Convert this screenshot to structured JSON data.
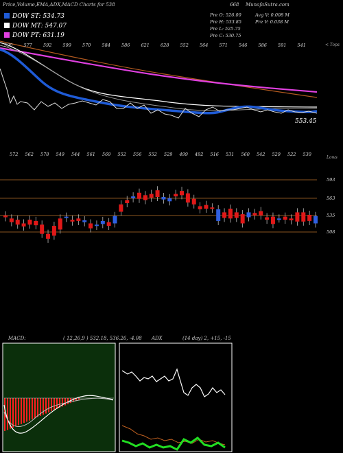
{
  "header": {
    "title": "Price,Volume,EMA,ADX,MACD Charts for 538",
    "code": "668",
    "brand": "MunafaSutra.com"
  },
  "legend": [
    {
      "label": "DOW ST: 534.73",
      "color": "#1f5bd6"
    },
    {
      "label": "DOW MT: 547.07",
      "color": "#ffffff"
    },
    {
      "label": "DOW PT: 631.19",
      "color": "#e040e0"
    }
  ],
  "prev": {
    "open": "Pre O: 526.00",
    "high": "Pre H: 533.85",
    "low": "Pre L: 525.75",
    "close": "Pre C: 530.75",
    "avg_vol": "Avg V: 0.008 M",
    "pre_vol": "Pre V: 0.038 M"
  },
  "top_panel": {
    "corner_label": "< Tops",
    "last_value": "553.45",
    "top_labels": [
      "590",
      "577",
      "592",
      "599",
      "570",
      "584",
      "586",
      "621",
      "628",
      "552",
      "564",
      "571",
      "546",
      "586",
      "591",
      "541"
    ]
  },
  "mid_panel": {
    "corner_label": "Lows",
    "bottom_labels": [
      "572",
      "562",
      "578",
      "549",
      "544",
      "561",
      "569",
      "552",
      "556",
      "552",
      "529",
      "499",
      "492",
      "516",
      "531",
      "560",
      "542",
      "529",
      "522",
      "530"
    ],
    "levels": [
      {
        "label": "593"
      },
      {
        "label": "563"
      },
      {
        "label": "535"
      },
      {
        "label": "508"
      }
    ]
  },
  "macd": {
    "label": "MACD:",
    "values": "( 12,26,9 ) 532.18, 536.26, -4.08"
  },
  "adx": {
    "label": "ADX",
    "values": "(14 day) 2, +15, -15"
  },
  "chart_data": {
    "type": "candlestick",
    "levels": [
      593,
      563,
      535,
      508
    ],
    "candles": [
      {
        "o": 535,
        "c": 532
      },
      {
        "o": 530,
        "c": 524
      },
      {
        "o": 528,
        "c": 520
      },
      {
        "o": 522,
        "c": 517
      },
      {
        "o": 528,
        "c": 520
      },
      {
        "o": 526,
        "c": 519
      },
      {
        "o": 520,
        "c": 505
      },
      {
        "o": 505,
        "c": 497
      },
      {
        "o": 518,
        "c": 502
      },
      {
        "o": 530,
        "c": 512
      },
      {
        "o": 531,
        "c": 533
      },
      {
        "o": 528,
        "c": 525
      },
      {
        "o": 530,
        "c": 526
      },
      {
        "o": 524,
        "c": 527
      },
      {
        "o": 522,
        "c": 514
      },
      {
        "o": 518,
        "c": 520
      },
      {
        "o": 521,
        "c": 526
      },
      {
        "o": 524,
        "c": 518
      },
      {
        "o": 522,
        "c": 534
      },
      {
        "o": 553,
        "c": 541
      },
      {
        "o": 560,
        "c": 555
      },
      {
        "o": 563,
        "c": 566
      },
      {
        "o": 572,
        "c": 562
      },
      {
        "o": 568,
        "c": 560
      },
      {
        "o": 570,
        "c": 564
      },
      {
        "o": 576,
        "c": 565
      },
      {
        "o": 561,
        "c": 565
      },
      {
        "o": 558,
        "c": 563
      },
      {
        "o": 570,
        "c": 566
      },
      {
        "o": 575,
        "c": 568
      },
      {
        "o": 571,
        "c": 556
      },
      {
        "o": 562,
        "c": 553
      },
      {
        "o": 550,
        "c": 545
      },
      {
        "o": 552,
        "c": 546
      },
      {
        "o": 548,
        "c": 546
      },
      {
        "o": 526,
        "c": 545
      },
      {
        "o": 540,
        "c": 531
      },
      {
        "o": 546,
        "c": 530
      },
      {
        "o": 540,
        "c": 531
      },
      {
        "o": 537,
        "c": 522
      },
      {
        "o": 532,
        "c": 540
      },
      {
        "o": 539,
        "c": 535
      },
      {
        "o": 542,
        "c": 535
      },
      {
        "o": 532,
        "c": 528
      },
      {
        "o": 533,
        "c": 521
      },
      {
        "o": 530,
        "c": 530
      },
      {
        "o": 533,
        "c": 528
      },
      {
        "o": 530,
        "c": 527
      },
      {
        "o": 540,
        "c": 525
      },
      {
        "o": 540,
        "c": 525
      },
      {
        "o": 536,
        "c": 526
      },
      {
        "o": 522,
        "c": 534
      }
    ]
  }
}
